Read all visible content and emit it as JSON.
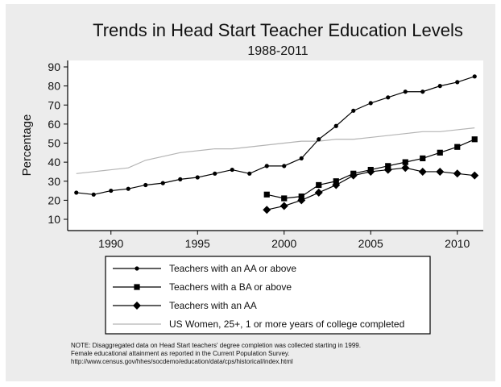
{
  "chart_data": {
    "type": "line",
    "title": "Trends in Head Start Teacher Education Levels",
    "subtitle": "1988-2011",
    "xlabel": "",
    "ylabel": "Percentage",
    "xlim": [
      1988,
      2011
    ],
    "ylim": [
      10,
      90
    ],
    "x_ticks": [
      1990,
      1995,
      2000,
      2005,
      2010
    ],
    "y_ticks": [
      10,
      20,
      30,
      40,
      50,
      60,
      70,
      80,
      90
    ],
    "grid": false,
    "legend_position": "bottom",
    "series": [
      {
        "name": "Teachers with an AA or above",
        "marker": "circle",
        "color": "#000000",
        "points": [
          [
            1988,
            24
          ],
          [
            1989,
            23
          ],
          [
            1990,
            25
          ],
          [
            1991,
            26
          ],
          [
            1992,
            28
          ],
          [
            1993,
            29
          ],
          [
            1994,
            31
          ],
          [
            1995,
            32
          ],
          [
            1996,
            34
          ],
          [
            1997,
            36
          ],
          [
            1998,
            34
          ],
          [
            1999,
            38
          ],
          [
            2000,
            38
          ],
          [
            2001,
            42
          ],
          [
            2002,
            52
          ],
          [
            2003,
            59
          ],
          [
            2004,
            67
          ],
          [
            2005,
            71
          ],
          [
            2006,
            74
          ],
          [
            2007,
            77
          ],
          [
            2008,
            77
          ],
          [
            2009,
            80
          ],
          [
            2010,
            82
          ],
          [
            2011,
            85
          ]
        ]
      },
      {
        "name": "Teachers with a BA or above",
        "marker": "square",
        "color": "#000000",
        "points": [
          [
            1999,
            23
          ],
          [
            2000,
            21
          ],
          [
            2001,
            22
          ],
          [
            2002,
            28
          ],
          [
            2003,
            30
          ],
          [
            2004,
            34
          ],
          [
            2005,
            36
          ],
          [
            2006,
            38
          ],
          [
            2007,
            40
          ],
          [
            2008,
            42
          ],
          [
            2009,
            45
          ],
          [
            2010,
            48
          ],
          [
            2011,
            52
          ]
        ]
      },
      {
        "name": "Teachers with an AA",
        "marker": "diamond",
        "color": "#000000",
        "points": [
          [
            1999,
            15
          ],
          [
            2000,
            17
          ],
          [
            2001,
            20
          ],
          [
            2002,
            24
          ],
          [
            2003,
            28
          ],
          [
            2004,
            33
          ],
          [
            2005,
            35
          ],
          [
            2006,
            36
          ],
          [
            2007,
            37
          ],
          [
            2008,
            35
          ],
          [
            2009,
            35
          ],
          [
            2010,
            34
          ],
          [
            2011,
            33
          ]
        ]
      },
      {
        "name": "US Women, 25+, 1 or more years of college completed",
        "marker": "none",
        "color": "#b4b4b4",
        "points": [
          [
            1988,
            34
          ],
          [
            1989,
            35
          ],
          [
            1990,
            36
          ],
          [
            1991,
            37
          ],
          [
            1992,
            41
          ],
          [
            1993,
            43
          ],
          [
            1994,
            45
          ],
          [
            1995,
            46
          ],
          [
            1996,
            47
          ],
          [
            1997,
            47
          ],
          [
            1998,
            48
          ],
          [
            1999,
            49
          ],
          [
            2000,
            50
          ],
          [
            2001,
            51
          ],
          [
            2002,
            51
          ],
          [
            2003,
            52
          ],
          [
            2004,
            52
          ],
          [
            2005,
            53
          ],
          [
            2006,
            54
          ],
          [
            2007,
            55
          ],
          [
            2008,
            56
          ],
          [
            2009,
            56
          ],
          [
            2010,
            57
          ],
          [
            2011,
            58
          ]
        ]
      }
    ]
  },
  "note": {
    "lines": [
      "NOTE: Disaggregated data on Head Start teachers' degree completion was collected starting in 1999.",
      "Female educational attainment as reported in the Current Population Survey.",
      "http://www.census.gov/hhes/socdemo/education/data/cps/historical/index.html"
    ]
  }
}
